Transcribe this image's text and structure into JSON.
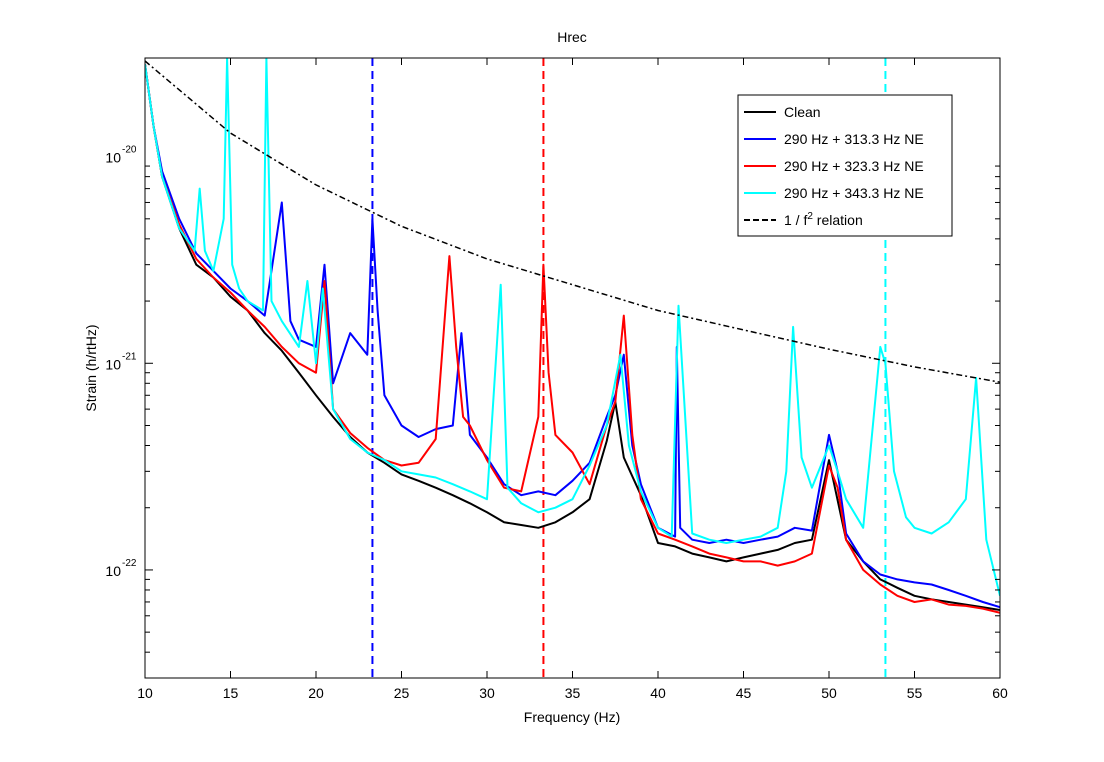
{
  "chart_data": {
    "type": "line",
    "title": "Hrec",
    "xlabel": "Frequency (Hz)",
    "ylabel": "Strain (h/rtHz)",
    "x_scale": "linear",
    "y_scale": "log",
    "xlim": [
      10,
      60
    ],
    "ylim": [
      3e-23,
      3e-20
    ],
    "x_ticks": [
      10,
      15,
      20,
      25,
      30,
      35,
      40,
      45,
      50,
      55,
      60
    ],
    "y_ticks": [
      {
        "value": 1e-20,
        "base": "10",
        "exp": "-20"
      },
      {
        "value": 1e-21,
        "base": "10",
        "exp": "-21"
      },
      {
        "value": 1e-22,
        "base": "10",
        "exp": "-22"
      }
    ],
    "legend_position": "top-right",
    "legend": [
      {
        "label": "Clean",
        "color": "#000000",
        "dash": "solid"
      },
      {
        "label": "290 Hz + 313.3 Hz NE",
        "color": "#0000ff",
        "dash": "solid"
      },
      {
        "label": "290 Hz + 323.3 Hz NE",
        "color": "#ff0000",
        "dash": "solid"
      },
      {
        "label": "290 Hz + 343.3 Hz NE",
        "color": "#00ffff",
        "dash": "solid"
      },
      {
        "label": "1 / f",
        "sup": "2",
        "label_suffix": " relation",
        "color": "#000000",
        "dash": "dashed"
      }
    ],
    "vertical_lines": [
      {
        "x": 23.3,
        "color": "#0000ff"
      },
      {
        "x": 33.3,
        "color": "#ff0000"
      },
      {
        "x": 53.3,
        "color": "#00ffff"
      }
    ],
    "reference_curve": {
      "type": "1/f^2",
      "x": [
        10,
        15,
        20,
        25,
        30,
        35,
        40,
        45,
        50,
        55,
        60
      ],
      "y": [
        2.9e-20,
        1.3e-20,
        7.3e-21,
        4.6e-21,
        3.2e-21,
        2.4e-21,
        1.8e-21,
        1.45e-21,
        1.17e-21,
        9.6e-22,
        8.1e-22
      ]
    },
    "series": [
      {
        "name": "Clean",
        "color": "#000000",
        "x": [
          10,
          10.5,
          11,
          12,
          13,
          14,
          15,
          16,
          17,
          18,
          19,
          20,
          21,
          22,
          23,
          24,
          25,
          26,
          27,
          28,
          29,
          30,
          31,
          32,
          33,
          34,
          35,
          36,
          37,
          37.5,
          38,
          39,
          40,
          41,
          42,
          43,
          44,
          45,
          46,
          47,
          48,
          49,
          50,
          51,
          52,
          53,
          54,
          55,
          56,
          57,
          58,
          59,
          60
        ],
        "y": [
          2.8e-20,
          1.4e-20,
          8e-21,
          4.5e-21,
          3e-21,
          2.6e-21,
          2.1e-21,
          1.8e-21,
          1.4e-21,
          1.15e-21,
          9e-22,
          7e-22,
          5.5e-22,
          4.4e-22,
          3.7e-22,
          3.3e-22,
          2.9e-22,
          2.7e-22,
          2.5e-22,
          2.3e-22,
          2.1e-22,
          1.9e-22,
          1.7e-22,
          1.65e-22,
          1.6e-22,
          1.7e-22,
          1.9e-22,
          2.2e-22,
          4.2e-22,
          6.5e-22,
          3.5e-22,
          2.3e-22,
          1.35e-22,
          1.3e-22,
          1.2e-22,
          1.15e-22,
          1.1e-22,
          1.15e-22,
          1.2e-22,
          1.25e-22,
          1.35e-22,
          1.4e-22,
          3.4e-22,
          1.4e-22,
          1.1e-22,
          9e-23,
          8.2e-23,
          7.5e-23,
          7.2e-23,
          7e-23,
          6.8e-23,
          6.6e-23,
          6.4e-23
        ]
      },
      {
        "name": "290 Hz + 313.3 Hz NE",
        "color": "#0000ff",
        "x": [
          10,
          10.5,
          11,
          12,
          13,
          14,
          15,
          16,
          17,
          18,
          18.5,
          19,
          20,
          20.5,
          21,
          22,
          23,
          23.3,
          23.6,
          24,
          25,
          26,
          27,
          28,
          28.5,
          29,
          30,
          31,
          32,
          33,
          34,
          35,
          36,
          37,
          37.5,
          38,
          38.5,
          39,
          40,
          41,
          41.1,
          41.3,
          42,
          43,
          44,
          45,
          46,
          47,
          48,
          49,
          50,
          50.5,
          51,
          52,
          53,
          54,
          55,
          56,
          57,
          58,
          59,
          60
        ],
        "y": [
          2.8e-20,
          1.4e-20,
          8.5e-21,
          5e-21,
          3.4e-21,
          2.8e-21,
          2.3e-21,
          2e-21,
          1.7e-21,
          6e-21,
          1.6e-21,
          1.3e-21,
          1.2e-21,
          3e-21,
          8e-22,
          1.4e-21,
          1.1e-21,
          5e-21,
          1.8e-21,
          7e-22,
          5e-22,
          4.4e-22,
          4.8e-22,
          5e-22,
          1.4e-21,
          4.5e-22,
          3.5e-22,
          2.6e-22,
          2.3e-22,
          2.4e-22,
          2.3e-22,
          2.7e-22,
          3.3e-22,
          5.5e-22,
          7e-22,
          1.1e-21,
          4e-22,
          2.6e-22,
          1.6e-22,
          1.45e-22,
          1.2e-21,
          1.6e-22,
          1.4e-22,
          1.35e-22,
          1.4e-22,
          1.35e-22,
          1.4e-22,
          1.45e-22,
          1.6e-22,
          1.55e-22,
          4.5e-22,
          3e-22,
          1.5e-22,
          1.1e-22,
          9.5e-23,
          9e-23,
          8.7e-23,
          8.5e-23,
          8e-23,
          7.5e-23,
          7e-23,
          6.6e-23
        ]
      },
      {
        "name": "290 Hz + 323.3 Hz NE",
        "color": "#ff0000",
        "x": [
          10,
          10.5,
          11,
          12,
          13,
          14,
          15,
          16,
          17,
          18,
          19,
          20,
          20.5,
          21,
          22,
          23,
          24,
          25,
          26,
          27,
          27.8,
          28.2,
          28.6,
          29,
          30,
          31,
          32,
          33,
          33.3,
          33.6,
          34,
          35,
          36,
          37,
          37.5,
          38,
          38.5,
          39,
          40,
          41,
          42,
          43,
          44,
          45,
          46,
          47,
          48,
          49,
          50,
          50.5,
          51,
          52,
          53,
          54,
          55,
          56,
          57,
          58,
          59,
          60
        ],
        "y": [
          2.8e-20,
          1.4e-20,
          8e-21,
          4.7e-21,
          3.2e-21,
          2.6e-21,
          2.2e-21,
          1.8e-21,
          1.5e-21,
          1.2e-21,
          1e-21,
          9e-22,
          2.5e-21,
          6e-22,
          4.6e-22,
          3.9e-22,
          3.4e-22,
          3.2e-22,
          3.3e-22,
          4.3e-22,
          3.3e-21,
          1.2e-21,
          5.5e-22,
          5e-22,
          3.4e-22,
          2.5e-22,
          2.4e-22,
          5.5e-22,
          3e-21,
          9e-22,
          4.5e-22,
          3.7e-22,
          2.6e-22,
          5e-22,
          6.5e-22,
          1.7e-21,
          4.5e-22,
          2.2e-22,
          1.5e-22,
          1.4e-22,
          1.3e-22,
          1.2e-22,
          1.15e-22,
          1.1e-22,
          1.1e-22,
          1.05e-22,
          1.1e-22,
          1.2e-22,
          3.2e-22,
          2.5e-22,
          1.4e-22,
          1e-22,
          8.5e-23,
          7.5e-23,
          7e-23,
          7.2e-23,
          6.8e-23,
          6.7e-23,
          6.5e-23,
          6.2e-23
        ]
      },
      {
        "name": "290 Hz + 343.3 Hz NE",
        "color": "#00ffff",
        "x": [
          10,
          10.5,
          11,
          12,
          12.9,
          13.2,
          13.5,
          14,
          14.6,
          14.8,
          15.1,
          15.5,
          16,
          16.9,
          17.1,
          17.4,
          18,
          19,
          19.5,
          20,
          20.4,
          21,
          22,
          23,
          24,
          25,
          26,
          27,
          28,
          29,
          30,
          30.8,
          31.2,
          32,
          33,
          34,
          35,
          36,
          37,
          37.8,
          38.3,
          39,
          40,
          40.8,
          41.2,
          42,
          43,
          44,
          45,
          46,
          47,
          47.5,
          47.9,
          48.4,
          49,
          50,
          50.5,
          51,
          52,
          53,
          53.3,
          53.8,
          54.5,
          55,
          56,
          57,
          58,
          58.6,
          59.2,
          60
        ],
        "y": [
          2.8e-20,
          1.4e-20,
          8e-21,
          4.5e-21,
          3.5e-21,
          7e-21,
          3.5e-21,
          2.8e-21,
          5e-21,
          3e-20,
          3e-21,
          2.3e-21,
          2e-21,
          1.8e-21,
          3e-20,
          2e-21,
          1.6e-21,
          1.2e-21,
          2.5e-21,
          1e-21,
          2.3e-21,
          6e-22,
          4.3e-22,
          3.7e-22,
          3.4e-22,
          3e-22,
          2.9e-22,
          2.8e-22,
          2.6e-22,
          2.4e-22,
          2.2e-22,
          2.4e-21,
          2.5e-22,
          2.1e-22,
          1.9e-22,
          2e-22,
          2.2e-22,
          3.2e-22,
          5e-22,
          1.1e-21,
          4e-22,
          2.4e-22,
          1.6e-22,
          1.45e-22,
          1.9e-21,
          1.5e-22,
          1.4e-22,
          1.35e-22,
          1.4e-22,
          1.45e-22,
          1.6e-22,
          3e-22,
          1.5e-21,
          3.5e-22,
          2.5e-22,
          4e-22,
          3e-22,
          2.2e-22,
          1.6e-22,
          1.2e-21,
          1e-21,
          3e-22,
          1.8e-22,
          1.6e-22,
          1.5e-22,
          1.7e-22,
          2.2e-22,
          8.5e-22,
          1.4e-22,
          7.5e-23
        ]
      }
    ]
  }
}
